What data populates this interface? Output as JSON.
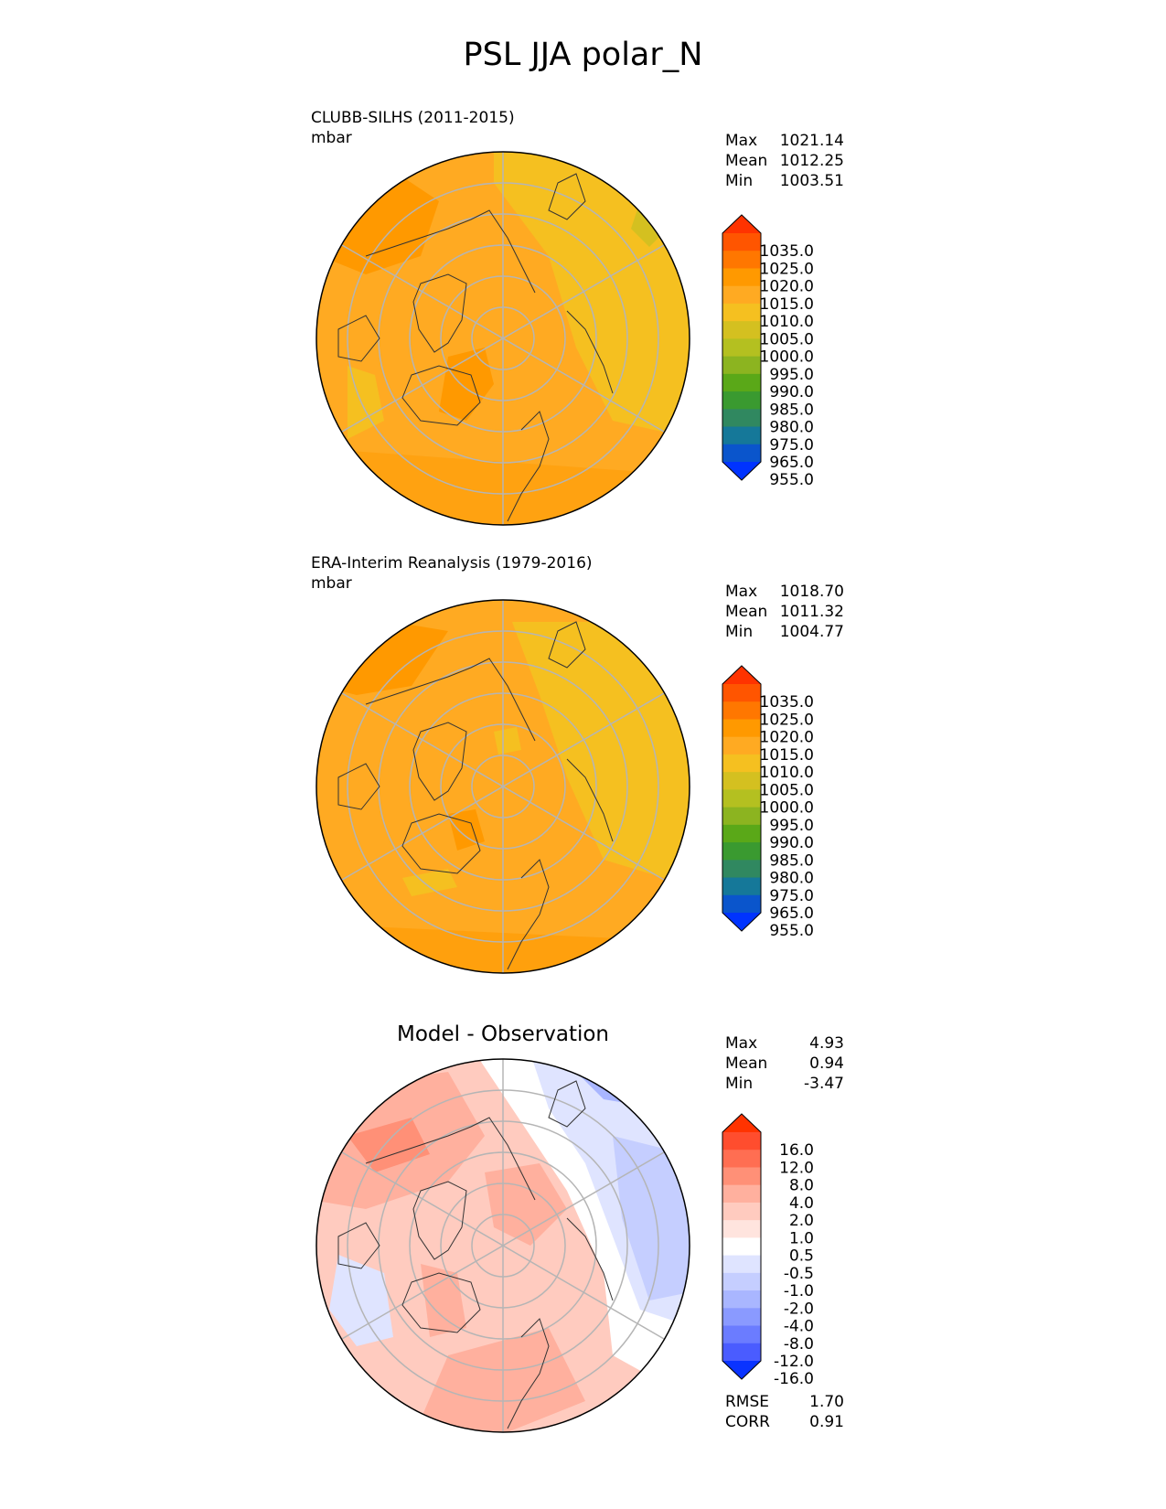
{
  "title": "PSL JJA polar_N",
  "panels": [
    {
      "name": "model",
      "title": "CLUBB-SILHS (2011-2015)",
      "units": "mbar",
      "stats": [
        {
          "label": "Max",
          "value": "1021.14"
        },
        {
          "label": "Mean",
          "value": "1012.25"
        },
        {
          "label": "Min",
          "value": "1003.51"
        }
      ]
    },
    {
      "name": "obs",
      "title": "ERA-Interim Reanalysis (1979-2016)",
      "units": "mbar",
      "stats": [
        {
          "label": "Max",
          "value": "1018.70"
        },
        {
          "label": "Mean",
          "value": "1011.32"
        },
        {
          "label": "Min",
          "value": "1004.77"
        }
      ]
    },
    {
      "name": "diff",
      "title": "Model - Observation",
      "units": "",
      "stats": [
        {
          "label": "Max",
          "value": "4.93"
        },
        {
          "label": "Mean",
          "value": "0.94"
        },
        {
          "label": "Min",
          "value": "-3.47"
        }
      ],
      "extra_stats": [
        {
          "label": "RMSE",
          "value": "1.70"
        },
        {
          "label": "CORR",
          "value": "0.91"
        }
      ]
    }
  ],
  "colorbars": {
    "field": {
      "labels": [
        "1035.0",
        "1025.0",
        "1020.0",
        "1015.0",
        "1010.0",
        "1005.0",
        "1000.0",
        "995.0",
        "990.0",
        "985.0",
        "980.0",
        "975.0",
        "965.0",
        "955.0"
      ],
      "colors": [
        "#ff3300",
        "#ff5500",
        "#ff7700",
        "#ff9900",
        "#ffaa22",
        "#f5c020",
        "#d4c020",
        "#b4c020",
        "#8cb420",
        "#5aa818",
        "#3a9a30",
        "#308860",
        "#157899",
        "#0a55cc",
        "#0033ff"
      ]
    },
    "diff": {
      "labels": [
        "16.0",
        "12.0",
        "8.0",
        "4.0",
        "2.0",
        "1.0",
        "0.5",
        "-0.5",
        "-1.0",
        "-2.0",
        "-4.0",
        "-8.0",
        "-12.0",
        "-16.0"
      ],
      "colors": [
        "#ff3300",
        "#ff4d2e",
        "#ff6e52",
        "#ff9077",
        "#ffb09e",
        "#ffcbbf",
        "#ffe4de",
        "#ffffff",
        "#dfe4ff",
        "#c5ceff",
        "#a9b6ff",
        "#8a9aff",
        "#6b7cff",
        "#4a5cff",
        "#0a33ff"
      ]
    }
  }
}
